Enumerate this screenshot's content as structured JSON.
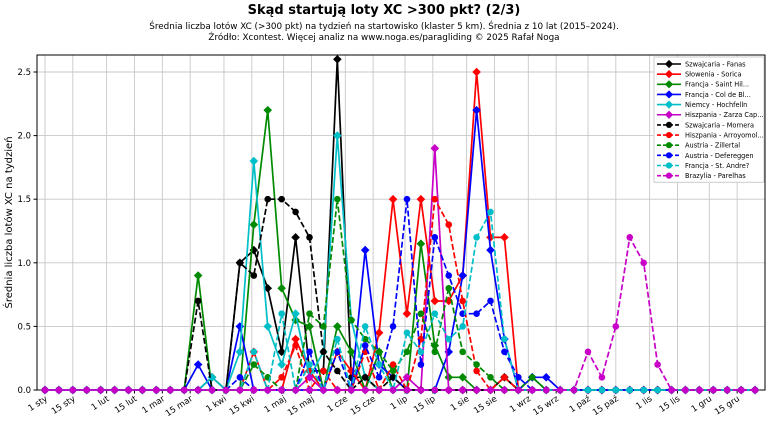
{
  "chart_data": {
    "type": "line",
    "title": "Skąd startują loty XC >300 pkt? (2/3)",
    "subtitle": "Średnia liczba lotów XC (>300 pkt) na tydzień na startowisko (klaster 5 km). Średnia z 10 lat (2015–2024).",
    "source": "Źródło: Xcontest. Więcej analiz na www.noga.es/paragliding © 2025 Rafał Noga",
    "ylabel": "Średnia liczba lotów XC na tydzień",
    "ylim": [
      0,
      2.63
    ],
    "yticks": [
      0.0,
      0.5,
      1.0,
      1.5,
      2.0,
      2.5
    ],
    "grid": true,
    "grid_color": "#c8c8c8",
    "legend_position": "top-right",
    "weeks": 52,
    "xticks": [
      {
        "label": "1 sty",
        "day": 1
      },
      {
        "label": "15 sty",
        "day": 15
      },
      {
        "label": "1 lut",
        "day": 32
      },
      {
        "label": "15 lut",
        "day": 46
      },
      {
        "label": "1 mar",
        "day": 60
      },
      {
        "label": "15 mar",
        "day": 74
      },
      {
        "label": "1 kwi",
        "day": 91
      },
      {
        "label": "15 kwi",
        "day": 105
      },
      {
        "label": "1 maj",
        "day": 121
      },
      {
        "label": "15 maj",
        "day": 135
      },
      {
        "label": "1 cze",
        "day": 152
      },
      {
        "label": "15 cze",
        "day": 166
      },
      {
        "label": "1 lip",
        "day": 182
      },
      {
        "label": "15 lip",
        "day": 196
      },
      {
        "label": "1 sie",
        "day": 213
      },
      {
        "label": "15 sie",
        "day": 227
      },
      {
        "label": "1 wrz",
        "day": 244
      },
      {
        "label": "15 wrz",
        "day": 258
      },
      {
        "label": "1 paź",
        "day": 274
      },
      {
        "label": "15 paź",
        "day": 288
      },
      {
        "label": "1 lis",
        "day": 305
      },
      {
        "label": "15 lis",
        "day": 319
      },
      {
        "label": "1 gru",
        "day": 335
      },
      {
        "label": "15 gru",
        "day": 349
      }
    ],
    "series": [
      {
        "name": "Szwajcaria - Fanas",
        "color": "#000000",
        "style": "solid",
        "marker": "diamond",
        "values": [
          0,
          0,
          0,
          0,
          0,
          0,
          0,
          0,
          0,
          0,
          0,
          0,
          0.1,
          0,
          1.0,
          1.1,
          0.8,
          0.3,
          1.2,
          0.15,
          0.15,
          2.6,
          0.1,
          0.1,
          0,
          0,
          0,
          0,
          0,
          0,
          0,
          0,
          0,
          0.1,
          0,
          0,
          0,
          0,
          0,
          0,
          0,
          0,
          0,
          0,
          0,
          0,
          0,
          0,
          0,
          0,
          0,
          0
        ]
      },
      {
        "name": "Słowenia - Sorica",
        "color": "#ff0000",
        "style": "solid",
        "marker": "diamond",
        "values": [
          0,
          0,
          0,
          0,
          0,
          0,
          0,
          0,
          0,
          0,
          0,
          0,
          0,
          0,
          0,
          0.3,
          0,
          0,
          0.4,
          0.15,
          0,
          0.3,
          0.15,
          0,
          0.45,
          1.5,
          0.6,
          1.5,
          0.7,
          0.7,
          0.9,
          2.5,
          1.2,
          1.2,
          0,
          0,
          0,
          0,
          0,
          0,
          0,
          0,
          0,
          0,
          0,
          0,
          0,
          0,
          0,
          0,
          0,
          0
        ]
      },
      {
        "name": "Francja - Saint Hil...",
        "color": "#008a00",
        "style": "solid",
        "marker": "diamond",
        "values": [
          0,
          0,
          0,
          0,
          0,
          0,
          0,
          0,
          0,
          0,
          0,
          0.9,
          0,
          0,
          0,
          1.3,
          2.2,
          0.8,
          0.55,
          0.5,
          0,
          0.5,
          0.3,
          0,
          0.3,
          0,
          0,
          1.15,
          0.35,
          0.1,
          0.1,
          0,
          0,
          0,
          0,
          0.1,
          0,
          0,
          0,
          0,
          0,
          0,
          0,
          0,
          0,
          0,
          0,
          0,
          0,
          0,
          0,
          0
        ]
      },
      {
        "name": "Francja - Col de Bl...",
        "color": "#0000ff",
        "style": "solid",
        "marker": "diamond",
        "values": [
          0,
          0,
          0,
          0,
          0,
          0,
          0,
          0,
          0,
          0,
          0,
          0.2,
          0,
          0,
          0.5,
          0,
          0,
          0,
          0,
          0,
          0,
          0,
          0,
          1.1,
          0.2,
          0.1,
          0,
          0,
          0,
          0.3,
          0.9,
          2.2,
          1.1,
          0.4,
          0,
          0.1,
          0.1,
          0,
          0,
          0,
          0,
          0,
          0,
          0,
          0,
          0,
          0,
          0,
          0,
          0,
          0,
          0
        ]
      },
      {
        "name": "Niemcy - Hochfelln",
        "color": "#00bfc8",
        "style": "solid",
        "marker": "diamond",
        "values": [
          0,
          0,
          0,
          0,
          0,
          0,
          0,
          0,
          0,
          0,
          0,
          0,
          0.1,
          0,
          0.3,
          1.8,
          0.5,
          0.2,
          0.6,
          0.1,
          0.3,
          2.0,
          0.55,
          0.1,
          0,
          0,
          0,
          0,
          0,
          0,
          0,
          0,
          0,
          0,
          0,
          0,
          0,
          0,
          0,
          0,
          0,
          0,
          0,
          0,
          0,
          0,
          0,
          0,
          0,
          0,
          0,
          0
        ]
      },
      {
        "name": "Hiszpania - Zarza Cap...",
        "color": "#c800c8",
        "style": "solid",
        "marker": "diamond",
        "values": [
          0,
          0,
          0,
          0,
          0,
          0,
          0,
          0,
          0,
          0,
          0,
          0,
          0,
          0,
          0,
          0,
          0,
          0,
          0,
          0.1,
          0,
          0,
          0,
          0,
          0,
          0,
          0.1,
          0,
          1.9,
          0,
          0,
          0,
          0,
          0,
          0,
          0,
          0,
          0,
          0,
          0,
          0,
          0,
          0,
          0,
          0,
          0,
          0,
          0,
          0,
          0,
          0,
          0
        ]
      },
      {
        "name": "Szwajcaria - Mornera",
        "color": "#000000",
        "style": "dashed",
        "marker": "circle",
        "values": [
          0,
          0,
          0,
          0,
          0,
          0,
          0,
          0,
          0,
          0,
          0,
          0.7,
          0,
          0,
          1.0,
          0.9,
          1.5,
          1.5,
          1.4,
          1.2,
          0.3,
          0.15,
          0,
          0.1,
          0,
          0.1,
          0,
          0,
          0,
          0,
          0,
          0,
          0,
          0.1,
          0,
          0,
          0,
          0,
          0,
          0,
          0,
          0,
          0,
          0,
          0,
          0,
          0,
          0,
          0,
          0,
          0,
          0
        ]
      },
      {
        "name": "Hiszpania - Arroyomol...",
        "color": "#ff0000",
        "style": "dashed",
        "marker": "circle",
        "values": [
          0,
          0,
          0,
          0,
          0,
          0,
          0,
          0,
          0,
          0,
          0,
          0,
          0,
          0,
          0,
          0,
          0,
          0.1,
          0.35,
          0,
          0.15,
          0,
          0,
          0.3,
          0,
          0.2,
          0,
          0.4,
          1.5,
          1.3,
          0.7,
          0.15,
          0,
          0.1,
          0,
          0,
          0,
          0,
          0,
          0,
          0,
          0,
          0,
          0,
          0,
          0,
          0,
          0,
          0,
          0,
          0,
          0
        ]
      },
      {
        "name": "Austria - Zillertal",
        "color": "#008a00",
        "style": "dashed",
        "marker": "circle",
        "values": [
          0,
          0,
          0,
          0,
          0,
          0,
          0,
          0,
          0,
          0,
          0,
          0,
          0,
          0,
          0,
          0.2,
          0.1,
          0,
          0,
          0.6,
          0.5,
          1.5,
          0.55,
          0.4,
          0.3,
          0.15,
          0.3,
          0.6,
          0.3,
          0.8,
          0.3,
          0.2,
          0.1,
          0,
          0,
          0.1,
          0,
          0,
          0,
          0,
          0,
          0,
          0,
          0,
          0,
          0,
          0,
          0,
          0,
          0,
          0,
          0
        ]
      },
      {
        "name": "Austria - Defereggen",
        "color": "#0000ff",
        "style": "dashed",
        "marker": "circle",
        "values": [
          0,
          0,
          0,
          0,
          0,
          0,
          0,
          0,
          0,
          0,
          0,
          0,
          0,
          0,
          0.1,
          0,
          0,
          0,
          0,
          0.3,
          0,
          0.3,
          0,
          0.35,
          0.1,
          0.5,
          1.5,
          0.2,
          1.2,
          0.9,
          0.6,
          0.6,
          0.7,
          0.3,
          0.1,
          0,
          0,
          0,
          0,
          0,
          0,
          0,
          0,
          0,
          0,
          0,
          0,
          0,
          0,
          0,
          0,
          0
        ]
      },
      {
        "name": "Francja - St. Andre?",
        "color": "#00bfc8",
        "style": "dashed",
        "marker": "circle",
        "values": [
          0,
          0,
          0,
          0,
          0,
          0,
          0,
          0,
          0,
          0,
          0,
          0,
          0,
          0,
          0,
          0.3,
          0,
          0.6,
          0,
          0.2,
          0,
          0.4,
          0,
          0.5,
          0.2,
          0,
          0.45,
          0.3,
          0.6,
          0.4,
          0.5,
          1.2,
          1.4,
          0.4,
          0,
          0,
          0,
          0,
          0,
          0,
          0,
          0,
          0,
          0,
          0,
          0,
          0,
          0,
          0,
          0,
          0,
          0
        ]
      },
      {
        "name": "Brazylia - Parelhas",
        "color": "#c800c8",
        "style": "dashed",
        "marker": "circle",
        "values": [
          0,
          0,
          0,
          0,
          0,
          0,
          0,
          0,
          0,
          0,
          0,
          0,
          0,
          0,
          0,
          0,
          0,
          0,
          0,
          0,
          0,
          0,
          0,
          0,
          0,
          0,
          0,
          0,
          0,
          0,
          0,
          0,
          0,
          0,
          0,
          0,
          0,
          0,
          0,
          0.3,
          0.1,
          0.5,
          1.2,
          1.0,
          0.2,
          0,
          0,
          0,
          0,
          0,
          0,
          0
        ]
      }
    ]
  }
}
